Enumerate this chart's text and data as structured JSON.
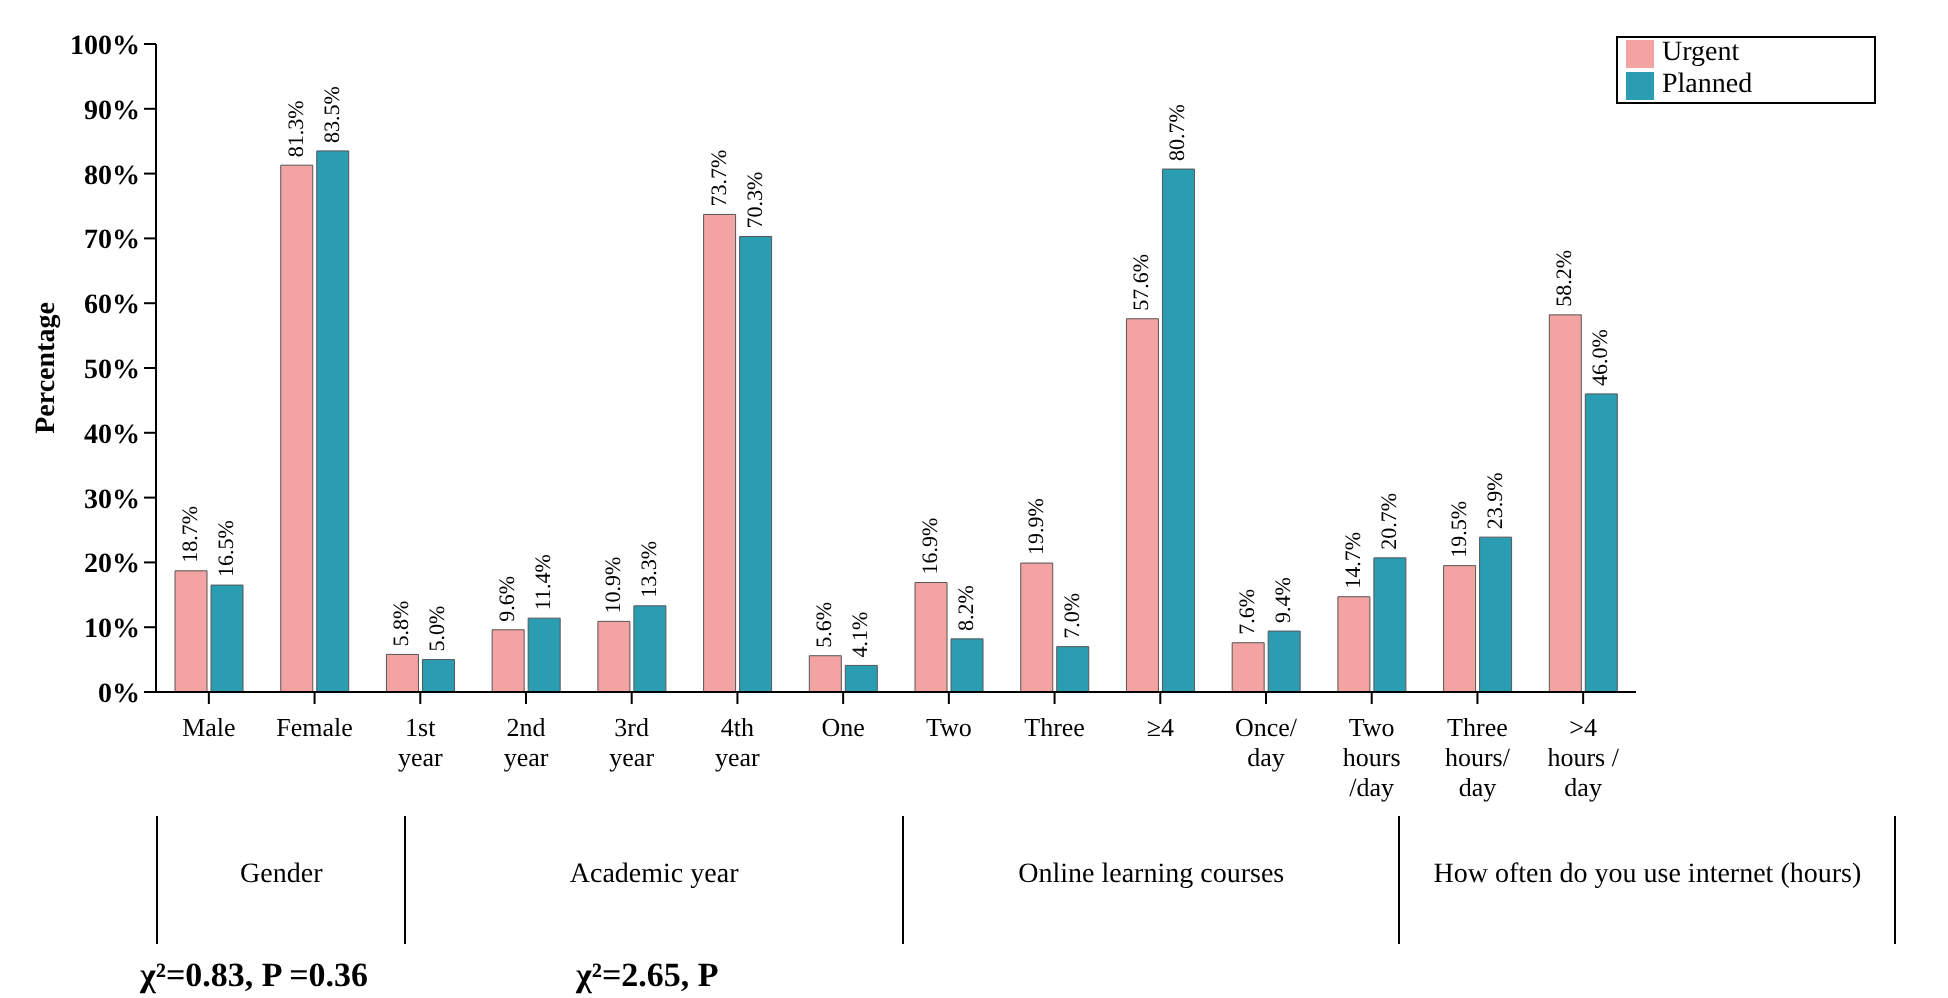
{
  "chart_data": {
    "type": "bar",
    "ylabel": "Percentage",
    "categories": [
      "Male",
      "Female",
      "1st year",
      "2nd year",
      "3rd year",
      "4th year",
      "One",
      "Two",
      "Three",
      "≥4",
      "Once/ day",
      "Two hours /day",
      "Three hours/ day",
      ">4 hours / day"
    ],
    "series": [
      {
        "name": "Urgent",
        "color": "#f4a3a3",
        "values": [
          18.7,
          81.3,
          5.8,
          9.6,
          10.9,
          73.7,
          5.6,
          16.9,
          19.9,
          57.6,
          7.6,
          14.7,
          19.5,
          58.2
        ],
        "value_labels": [
          "18.7%",
          "81.3%",
          "5.8%",
          "9.6%",
          "10.9%",
          "73.7%",
          "5.6%",
          "16.9%",
          "19.9%",
          "57.6%",
          "7.6%",
          "14.7%",
          "19.5%",
          "58.2%"
        ]
      },
      {
        "name": "Planned",
        "color": "#2b9db3",
        "values": [
          16.5,
          83.5,
          5.0,
          11.4,
          13.3,
          70.3,
          4.1,
          8.2,
          7.0,
          80.7,
          9.4,
          20.7,
          23.9,
          46.0
        ],
        "value_labels": [
          "16.5%",
          "83.5%",
          "5.0%",
          "11.4%",
          "13.3%",
          "70.3%",
          "4.1%",
          "8.2%",
          "7.0%",
          "80.7%",
          "9.4%",
          "20.7%",
          "23.9%",
          "46.0%"
        ]
      }
    ],
    "ylim": [
      0,
      100
    ],
    "yticks": [
      {
        "value": 0,
        "label": "0%"
      },
      {
        "value": 10,
        "label": "10%"
      },
      {
        "value": 20,
        "label": "20%"
      },
      {
        "value": 30,
        "label": "30%"
      },
      {
        "value": 40,
        "label": "40%"
      },
      {
        "value": 50,
        "label": "50%"
      },
      {
        "value": 60,
        "label": "60%"
      },
      {
        "value": 70,
        "label": "70%"
      },
      {
        "value": 80,
        "label": "80%"
      },
      {
        "value": 90,
        "label": "90%"
      },
      {
        "value": 100,
        "label": "100%"
      }
    ],
    "legend": "top right",
    "annotations": [
      "Gender",
      "Academic year",
      "Online learning courses",
      "How often do you use internet (hours)",
      "χ²=0.83, P =0.36",
      "χ²=2.65, P"
    ]
  }
}
